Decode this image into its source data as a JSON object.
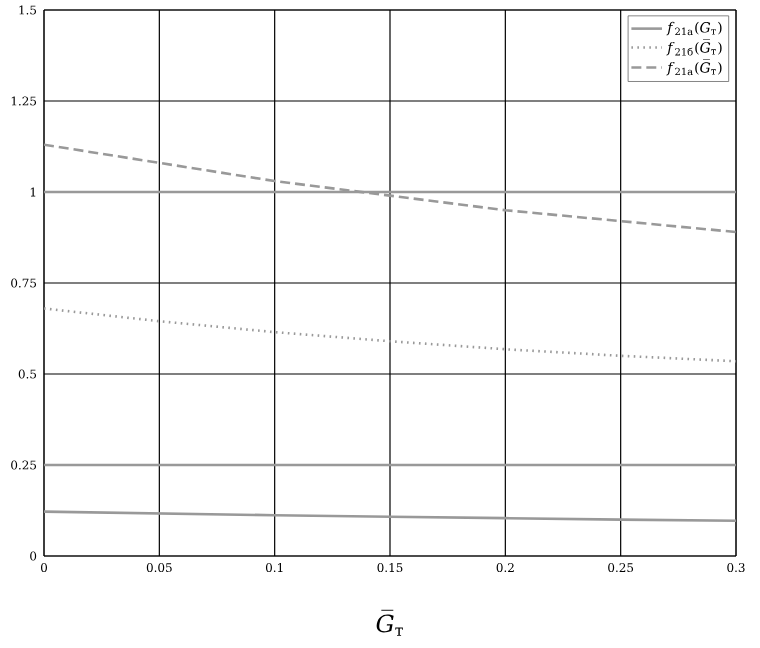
{
  "chart_data": {
    "type": "line",
    "xlabel": "*G̅*$_{т}$",
    "x": [
      0,
      0.05,
      0.1,
      0.15,
      0.2,
      0.25,
      0.3
    ],
    "series": [
      {
        "name": "*f*$_{21а}$(*G*$_{т}$)",
        "color": "#999999",
        "line_style": "solid",
        "values": [
          0.122,
          0.117,
          0.112,
          0.108,
          0.104,
          0.1,
          0.097
        ]
      },
      {
        "name": "*f*$_{21б}$(*G̅*$_{т}$)",
        "color": "#999999",
        "line_style": "dotted",
        "values": [
          0.68,
          0.645,
          0.615,
          0.59,
          0.568,
          0.55,
          0.535
        ]
      },
      {
        "name": "*f*$_{21а}$(*G̅*$_{т}$)",
        "color": "#999999",
        "line_style": "dashed",
        "values": [
          1.13,
          1.08,
          1.03,
          0.99,
          0.95,
          0.92,
          0.89
        ]
      },
      {
        "color": "#999999",
        "line_style": "solid",
        "values": [
          0.25,
          0.25,
          0.25,
          0.25,
          0.25,
          0.25,
          0.25
        ]
      },
      {
        "color": "#999999",
        "line_style": "solid",
        "values": [
          1,
          1,
          1,
          1,
          1,
          1,
          1
        ]
      }
    ],
    "xlim": [
      0,
      0.3
    ],
    "ylim": [
      0,
      1.5
    ],
    "xticks": [
      0,
      0.05,
      0.1,
      0.15,
      0.2,
      0.25,
      0.3
    ],
    "yticks": [
      0,
      0.25,
      0.5,
      0.75,
      1,
      1.25,
      1.5
    ],
    "grid": true,
    "legend": "top right",
    "marker": "none"
  }
}
